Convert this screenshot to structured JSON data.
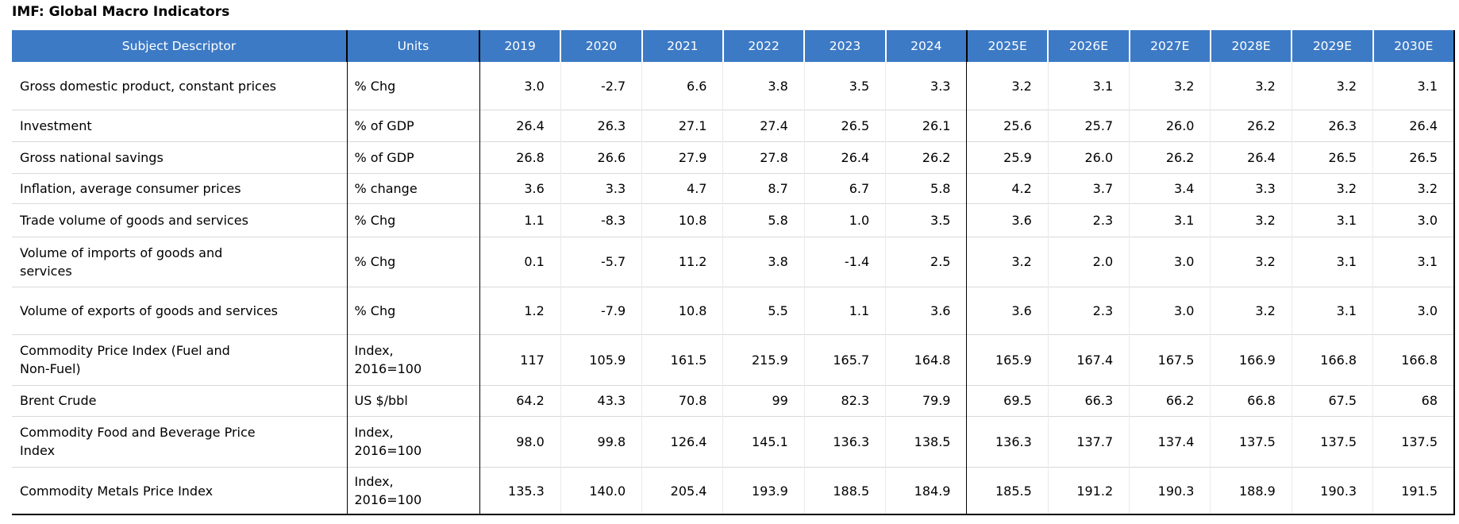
{
  "title": "IMF: Global Macro Indicators",
  "colors": {
    "header_bg": "#3D7AC5",
    "header_text": "#FFFFFF",
    "row_divider": "#D9D9D9",
    "col_divider": "#EAEAEA",
    "strong_divider": "#000000"
  },
  "chart_data": {
    "type": "table",
    "title": "IMF: Global Macro Indicators",
    "columns": [
      "Subject Descriptor",
      "Units",
      "2019",
      "2020",
      "2021",
      "2022",
      "2023",
      "2024",
      "2025E",
      "2026E",
      "2027E",
      "2028E",
      "2029E",
      "2030E"
    ],
    "rows": [
      {
        "descriptor": "Gross domestic product, constant prices",
        "units": "% Chg",
        "values": [
          "3.0",
          "-2.7",
          "6.6",
          "3.8",
          "3.5",
          "3.3",
          "3.2",
          "3.1",
          "3.2",
          "3.2",
          "3.2",
          "3.1"
        ]
      },
      {
        "descriptor": "Investment",
        "units": "% of GDP",
        "values": [
          "26.4",
          "26.3",
          "27.1",
          "27.4",
          "26.5",
          "26.1",
          "25.6",
          "25.7",
          "26.0",
          "26.2",
          "26.3",
          "26.4"
        ]
      },
      {
        "descriptor": "Gross national savings",
        "units": "% of GDP",
        "values": [
          "26.8",
          "26.6",
          "27.9",
          "27.8",
          "26.4",
          "26.2",
          "25.9",
          "26.0",
          "26.2",
          "26.4",
          "26.5",
          "26.5"
        ]
      },
      {
        "descriptor": "Inflation, average consumer prices",
        "units": "% change",
        "values": [
          "3.6",
          "3.3",
          "4.7",
          "8.7",
          "6.7",
          "5.8",
          "4.2",
          "3.7",
          "3.4",
          "3.3",
          "3.2",
          "3.2"
        ]
      },
      {
        "descriptor": "Trade volume of goods and services",
        "units": "% Chg",
        "values": [
          "1.1",
          "-8.3",
          "10.8",
          "5.8",
          "1.0",
          "3.5",
          "3.6",
          "2.3",
          "3.1",
          "3.2",
          "3.1",
          "3.0"
        ]
      },
      {
        "descriptor": "Volume of imports of goods and\nservices",
        "units": "% Chg",
        "values": [
          "0.1",
          "-5.7",
          "11.2",
          "3.8",
          "-1.4",
          "2.5",
          "3.2",
          "2.0",
          "3.0",
          "3.2",
          "3.1",
          "3.1"
        ]
      },
      {
        "descriptor": "Volume of exports of goods and services",
        "units": "% Chg",
        "values": [
          "1.2",
          "-7.9",
          "10.8",
          "5.5",
          "1.1",
          "3.6",
          "3.6",
          "2.3",
          "3.0",
          "3.2",
          "3.1",
          "3.0"
        ]
      },
      {
        "descriptor": "Commodity Price Index (Fuel and\nNon-Fuel)",
        "units": "Index,\n2016=100",
        "values": [
          "117",
          "105.9",
          "161.5",
          "215.9",
          "165.7",
          "164.8",
          "165.9",
          "167.4",
          "167.5",
          "166.9",
          "166.8",
          "166.8"
        ]
      },
      {
        "descriptor": "Brent Crude",
        "units": "US $/bbl",
        "values": [
          "64.2",
          "43.3",
          "70.8",
          "99",
          "82.3",
          "79.9",
          "69.5",
          "66.3",
          "66.2",
          "66.8",
          "67.5",
          "68"
        ]
      },
      {
        "descriptor": "Commodity Food and Beverage Price\nIndex",
        "units": "Index,\n2016=100",
        "values": [
          "98.0",
          "99.8",
          "126.4",
          "145.1",
          "136.3",
          "138.5",
          "136.3",
          "137.7",
          "137.4",
          "137.5",
          "137.5",
          "137.5"
        ]
      },
      {
        "descriptor": "Commodity Metals Price Index",
        "units": "Index,\n2016=100",
        "values": [
          "135.3",
          "140.0",
          "205.4",
          "193.9",
          "188.5",
          "184.9",
          "185.5",
          "191.2",
          "190.3",
          "188.9",
          "190.3",
          "191.5"
        ]
      }
    ]
  }
}
